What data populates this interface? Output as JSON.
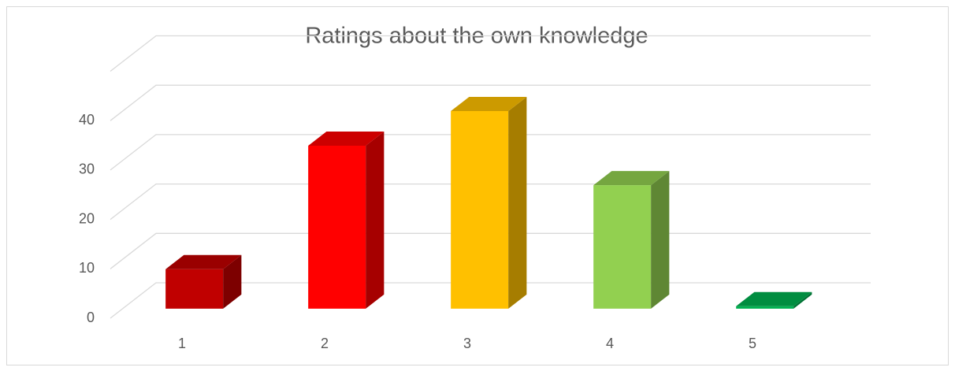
{
  "chart_data": {
    "type": "bar3d",
    "title": "Ratings about the own knowledge",
    "categories": [
      "1",
      "2",
      "3",
      "4",
      "5"
    ],
    "values": [
      8,
      33,
      40,
      25,
      0.5
    ],
    "colors": [
      "#c00000",
      "#ff0000",
      "#ffc000",
      "#92d050",
      "#00b050"
    ],
    "ylim": [
      0,
      50
    ],
    "yticks": [
      0,
      10,
      20,
      30,
      40
    ],
    "grid": true
  }
}
